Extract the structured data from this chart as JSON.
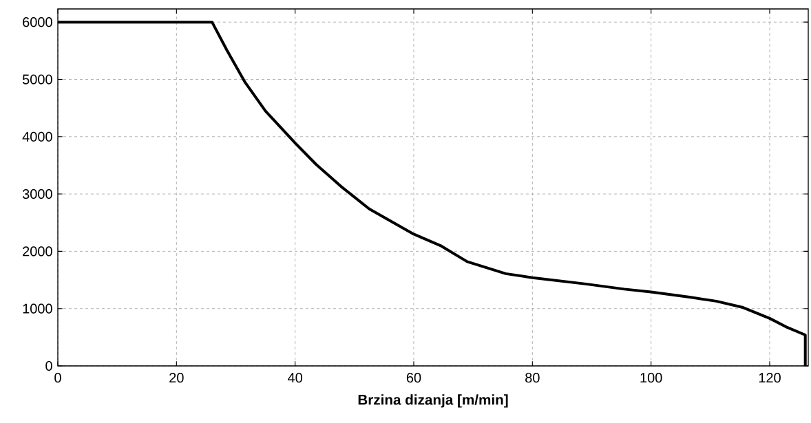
{
  "chart_data": {
    "type": "line",
    "xlabel": "Brzina dizanja [m/min]",
    "x": [
      0,
      26,
      28.5,
      31.5,
      35,
      40,
      43.5,
      48,
      52.5,
      60,
      64.5,
      69,
      75.5,
      80,
      89,
      95.5,
      100,
      106.5,
      111,
      115.5,
      120,
      123,
      126,
      126
    ],
    "values": [
      6000,
      6000,
      5510,
      4960,
      4450,
      3890,
      3520,
      3110,
      2740,
      2300,
      2100,
      1820,
      1610,
      1540,
      1430,
      1340,
      1290,
      1200,
      1130,
      1020,
      830,
      670,
      540,
      0
    ],
    "color": "#000000",
    "line_style": "solid",
    "xlim": [
      0,
      126.5
    ],
    "ylim": [
      0,
      6230
    ],
    "xticks": [
      0,
      20,
      40,
      60,
      80,
      100,
      120
    ],
    "yticks": [
      0,
      1000,
      2000,
      3000,
      4000,
      5000,
      6000
    ],
    "grid": true
  }
}
